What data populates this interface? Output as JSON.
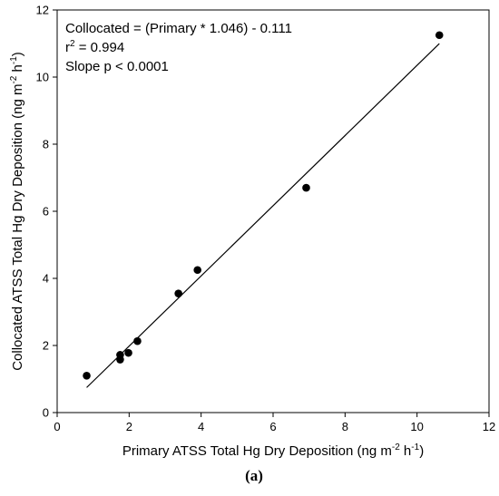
{
  "chart_data": {
    "type": "scatter",
    "title": "",
    "xlabel": {
      "main": "Primary ATSS Total Hg Dry Deposition (ng m",
      "sup1": "-2",
      "mid": " h",
      "sup2": "-1",
      "end": ")"
    },
    "ylabel": {
      "main": "Collocated ATSS Total Hg Dry Deposition (ng m",
      "sup1": "-2",
      "mid": " h",
      "sup2": "-1",
      "end": ")"
    },
    "xlim": [
      0,
      12
    ],
    "ylim": [
      0,
      12
    ],
    "xticks": [
      "0",
      "2",
      "4",
      "6",
      "8",
      "10",
      "12"
    ],
    "yticks": [
      "0",
      "2",
      "4",
      "6",
      "8",
      "10",
      "12"
    ],
    "grid": false,
    "points": [
      {
        "x": 0.82,
        "y": 1.1
      },
      {
        "x": 1.75,
        "y": 1.58
      },
      {
        "x": 1.75,
        "y": 1.72
      },
      {
        "x": 1.98,
        "y": 1.78
      },
      {
        "x": 2.23,
        "y": 2.13
      },
      {
        "x": 3.37,
        "y": 3.55
      },
      {
        "x": 3.9,
        "y": 4.25
      },
      {
        "x": 6.92,
        "y": 6.7
      },
      {
        "x": 10.62,
        "y": 11.25
      }
    ],
    "fit": {
      "slope": 1.046,
      "intercept": -0.111,
      "x_range": [
        0.82,
        10.62
      ]
    },
    "annotations": {
      "equation": "Collocated = (Primary * 1.046) - 0.111",
      "r2_prefix": "r",
      "r2_sup": "2",
      "r2_value": " = 0.994",
      "slope_p": "Slope p < 0.0001"
    },
    "panel_label": "(a)"
  }
}
